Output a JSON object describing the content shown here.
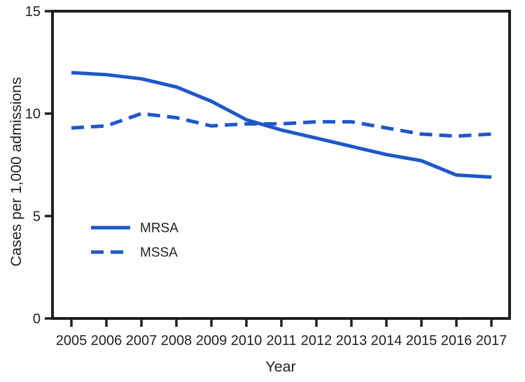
{
  "figure": {
    "background": "#ffffff"
  },
  "chart_data": {
    "type": "line",
    "title": "",
    "xlabel": "Year",
    "ylabel": "Cases per 1,000 admissions",
    "x": [
      2005,
      2006,
      2007,
      2008,
      2009,
      2010,
      2011,
      2012,
      2013,
      2014,
      2015,
      2016,
      2017
    ],
    "ylim": [
      0,
      15
    ],
    "yticks": [
      0,
      5,
      10,
      15
    ],
    "grid": "off",
    "legend_position": "inside lower-left",
    "series": [
      {
        "name": "MRSA",
        "line_style": "solid",
        "values": [
          12.0,
          11.9,
          11.7,
          11.3,
          10.6,
          9.7,
          9.2,
          8.8,
          8.4,
          8.0,
          7.7,
          7.0,
          6.9
        ]
      },
      {
        "name": "MSSA",
        "line_style": "dashed",
        "values": [
          9.3,
          9.4,
          10.0,
          9.8,
          9.4,
          9.5,
          9.5,
          9.6,
          9.6,
          9.3,
          9.0,
          8.9,
          9.0
        ]
      }
    ],
    "colors": {
      "line": "#1e57c9",
      "axis": "#221f1f",
      "text": "#221f1f"
    }
  }
}
